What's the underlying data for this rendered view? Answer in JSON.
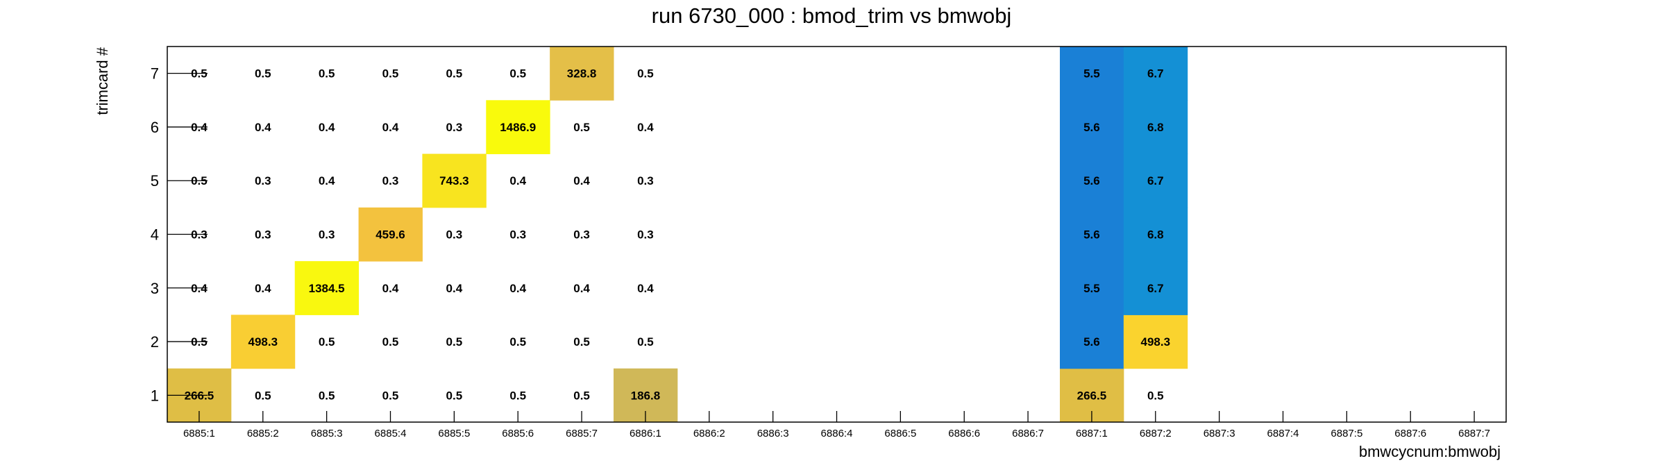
{
  "chart_data": {
    "type": "heatmap",
    "title": "run 6730_000 : bmod_trim vs bmwobj",
    "xlabel": "bmwcycnum:bmwobj",
    "ylabel": "trimcard #",
    "x_categories": [
      "6885:1",
      "6885:2",
      "6885:3",
      "6885:4",
      "6885:5",
      "6885:6",
      "6885:7",
      "6886:1",
      "6886:2",
      "6886:3",
      "6886:4",
      "6886:5",
      "6886:6",
      "6886:7",
      "6887:1",
      "6887:2",
      "6887:3",
      "6887:4",
      "6887:5",
      "6887:6",
      "6887:7"
    ],
    "y_categories": [
      "1",
      "2",
      "3",
      "4",
      "5",
      "6",
      "7"
    ],
    "cells": [
      {
        "x": "6885:1",
        "y": "1",
        "value": 266.5,
        "label": "266.5",
        "color": "#DFBE45"
      },
      {
        "x": "6885:1",
        "y": "2",
        "value": 0.5,
        "label": "0.5"
      },
      {
        "x": "6885:1",
        "y": "3",
        "value": 0.4,
        "label": "0.4"
      },
      {
        "x": "6885:1",
        "y": "4",
        "value": 0.3,
        "label": "0.3"
      },
      {
        "x": "6885:1",
        "y": "5",
        "value": 0.5,
        "label": "0.5"
      },
      {
        "x": "6885:1",
        "y": "6",
        "value": 0.4,
        "label": "0.4"
      },
      {
        "x": "6885:1",
        "y": "7",
        "value": 0.5,
        "label": "0.5"
      },
      {
        "x": "6885:2",
        "y": "1",
        "value": 0.5,
        "label": "0.5"
      },
      {
        "x": "6885:2",
        "y": "2",
        "value": 498.3,
        "label": "498.3",
        "color": "#F9CE33"
      },
      {
        "x": "6885:2",
        "y": "3",
        "value": 0.4,
        "label": "0.4"
      },
      {
        "x": "6885:2",
        "y": "4",
        "value": 0.3,
        "label": "0.3"
      },
      {
        "x": "6885:2",
        "y": "5",
        "value": 0.3,
        "label": "0.3"
      },
      {
        "x": "6885:2",
        "y": "6",
        "value": 0.4,
        "label": "0.4"
      },
      {
        "x": "6885:2",
        "y": "7",
        "value": 0.5,
        "label": "0.5"
      },
      {
        "x": "6885:3",
        "y": "1",
        "value": 0.5,
        "label": "0.5"
      },
      {
        "x": "6885:3",
        "y": "2",
        "value": 0.5,
        "label": "0.5"
      },
      {
        "x": "6885:3",
        "y": "3",
        "value": 1384.5,
        "label": "1384.5",
        "color": "#F9F80F"
      },
      {
        "x": "6885:3",
        "y": "4",
        "value": 0.3,
        "label": "0.3"
      },
      {
        "x": "6885:3",
        "y": "5",
        "value": 0.4,
        "label": "0.4"
      },
      {
        "x": "6885:3",
        "y": "6",
        "value": 0.4,
        "label": "0.4"
      },
      {
        "x": "6885:3",
        "y": "7",
        "value": 0.5,
        "label": "0.5"
      },
      {
        "x": "6885:4",
        "y": "1",
        "value": 0.5,
        "label": "0.5"
      },
      {
        "x": "6885:4",
        "y": "2",
        "value": 0.5,
        "label": "0.5"
      },
      {
        "x": "6885:4",
        "y": "3",
        "value": 0.4,
        "label": "0.4"
      },
      {
        "x": "6885:4",
        "y": "4",
        "value": 459.6,
        "label": "459.6",
        "color": "#F3C23E"
      },
      {
        "x": "6885:4",
        "y": "5",
        "value": 0.3,
        "label": "0.3"
      },
      {
        "x": "6885:4",
        "y": "6",
        "value": 0.4,
        "label": "0.4"
      },
      {
        "x": "6885:4",
        "y": "7",
        "value": 0.5,
        "label": "0.5"
      },
      {
        "x": "6885:5",
        "y": "1",
        "value": 0.5,
        "label": "0.5"
      },
      {
        "x": "6885:5",
        "y": "2",
        "value": 0.5,
        "label": "0.5"
      },
      {
        "x": "6885:5",
        "y": "3",
        "value": 0.4,
        "label": "0.4"
      },
      {
        "x": "6885:5",
        "y": "4",
        "value": 0.3,
        "label": "0.3"
      },
      {
        "x": "6885:5",
        "y": "5",
        "value": 743.3,
        "label": "743.3",
        "color": "#F8E41F"
      },
      {
        "x": "6885:5",
        "y": "6",
        "value": 0.3,
        "label": "0.3"
      },
      {
        "x": "6885:5",
        "y": "7",
        "value": 0.5,
        "label": "0.5"
      },
      {
        "x": "6885:6",
        "y": "1",
        "value": 0.5,
        "label": "0.5"
      },
      {
        "x": "6885:6",
        "y": "2",
        "value": 0.5,
        "label": "0.5"
      },
      {
        "x": "6885:6",
        "y": "3",
        "value": 0.4,
        "label": "0.4"
      },
      {
        "x": "6885:6",
        "y": "4",
        "value": 0.3,
        "label": "0.3"
      },
      {
        "x": "6885:6",
        "y": "5",
        "value": 0.4,
        "label": "0.4"
      },
      {
        "x": "6885:6",
        "y": "6",
        "value": 1486.9,
        "label": "1486.9",
        "color": "#F9FA0C"
      },
      {
        "x": "6885:6",
        "y": "7",
        "value": 0.5,
        "label": "0.5"
      },
      {
        "x": "6885:7",
        "y": "1",
        "value": 0.5,
        "label": "0.5"
      },
      {
        "x": "6885:7",
        "y": "2",
        "value": 0.5,
        "label": "0.5"
      },
      {
        "x": "6885:7",
        "y": "3",
        "value": 0.4,
        "label": "0.4"
      },
      {
        "x": "6885:7",
        "y": "4",
        "value": 0.3,
        "label": "0.3"
      },
      {
        "x": "6885:7",
        "y": "5",
        "value": 0.4,
        "label": "0.4"
      },
      {
        "x": "6885:7",
        "y": "6",
        "value": 0.5,
        "label": "0.5"
      },
      {
        "x": "6885:7",
        "y": "7",
        "value": 328.8,
        "label": "328.8",
        "color": "#E4BF48"
      },
      {
        "x": "6886:1",
        "y": "1",
        "value": 186.8,
        "label": "186.8",
        "color": "#D0B858"
      },
      {
        "x": "6886:1",
        "y": "2",
        "value": 0.5,
        "label": "0.5"
      },
      {
        "x": "6886:1",
        "y": "3",
        "value": 0.4,
        "label": "0.4"
      },
      {
        "x": "6886:1",
        "y": "4",
        "value": 0.3,
        "label": "0.3"
      },
      {
        "x": "6886:1",
        "y": "5",
        "value": 0.3,
        "label": "0.3"
      },
      {
        "x": "6886:1",
        "y": "6",
        "value": 0.4,
        "label": "0.4"
      },
      {
        "x": "6886:1",
        "y": "7",
        "value": 0.5,
        "label": "0.5"
      },
      {
        "x": "6887:1",
        "y": "1",
        "value": 266.5,
        "label": "266.5",
        "color": "#E0BE45"
      },
      {
        "x": "6887:1",
        "y": "2",
        "value": 5.6,
        "label": "5.6",
        "color": "#1A80D6"
      },
      {
        "x": "6887:1",
        "y": "3",
        "value": 5.5,
        "label": "5.5",
        "color": "#1A80D6"
      },
      {
        "x": "6887:1",
        "y": "4",
        "value": 5.6,
        "label": "5.6",
        "color": "#1A80D6"
      },
      {
        "x": "6887:1",
        "y": "5",
        "value": 5.6,
        "label": "5.6",
        "color": "#1A80D6"
      },
      {
        "x": "6887:1",
        "y": "6",
        "value": 5.6,
        "label": "5.6",
        "color": "#1A80D6"
      },
      {
        "x": "6887:1",
        "y": "7",
        "value": 5.5,
        "label": "5.5",
        "color": "#1A80D6"
      },
      {
        "x": "6887:2",
        "y": "1",
        "value": 0.5,
        "label": "0.5"
      },
      {
        "x": "6887:2",
        "y": "2",
        "value": 498.3,
        "label": "498.3",
        "color": "#FAD32E"
      },
      {
        "x": "6887:2",
        "y": "3",
        "value": 6.7,
        "label": "6.7",
        "color": "#1490D5"
      },
      {
        "x": "6887:2",
        "y": "4",
        "value": 6.8,
        "label": "6.8",
        "color": "#1490D5"
      },
      {
        "x": "6887:2",
        "y": "5",
        "value": 6.7,
        "label": "6.7",
        "color": "#1490D5"
      },
      {
        "x": "6887:2",
        "y": "6",
        "value": 6.8,
        "label": "6.8",
        "color": "#1490D5"
      },
      {
        "x": "6887:2",
        "y": "7",
        "value": 6.7,
        "label": "6.7",
        "color": "#1490D5"
      }
    ],
    "grid": false,
    "legend": "none"
  }
}
